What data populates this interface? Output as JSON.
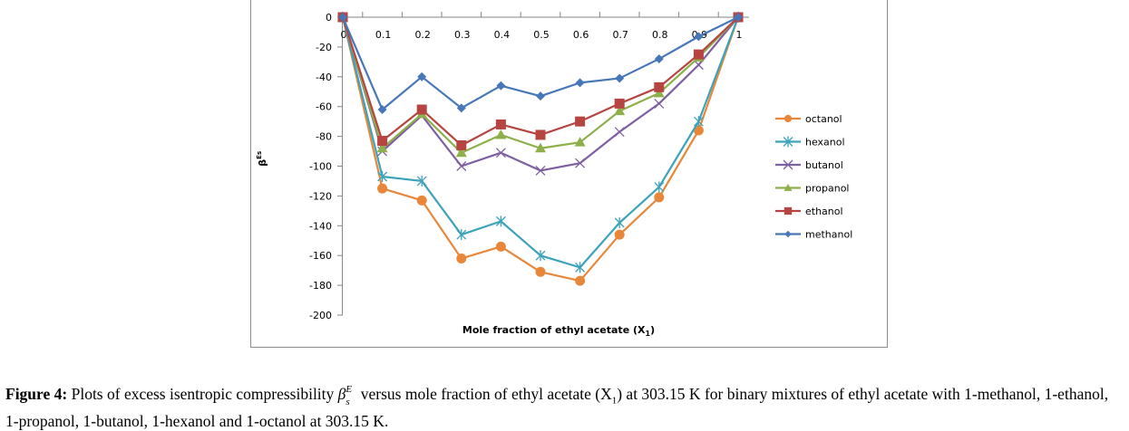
{
  "chart_data": {
    "type": "line",
    "title": "",
    "xlabel": "Mole fraction of ethyl acetate (X",
    "xlabel_sub": "1",
    "xlabel_close": ")",
    "ylabel": "β",
    "ylabel_sup": "E",
    "ylabel_sub": "s",
    "x": [
      0,
      0.1,
      0.2,
      0.3,
      0.4,
      0.5,
      0.6,
      0.7,
      0.8,
      0.9,
      1
    ],
    "x_tick_labels": [
      "0",
      "0.1",
      "0.2",
      "0.3",
      "0.4",
      "0.5",
      "0.6",
      "0.7",
      "0.8",
      "0.9",
      "1"
    ],
    "xlim": [
      0,
      1
    ],
    "ylim": [
      -200,
      0
    ],
    "y_ticks": [
      0,
      -20,
      -40,
      -60,
      -80,
      -100,
      -120,
      -140,
      -160,
      -180,
      -200
    ],
    "y_tick_labels": [
      "0",
      "-20",
      "-40",
      "-60",
      "-80",
      "-100",
      "-120",
      "-140",
      "-160",
      "-180",
      "-200"
    ],
    "grid": false,
    "legend_position": "right",
    "series": [
      {
        "name": "octanol",
        "color": "#E8873A",
        "marker": "circle",
        "values": [
          0,
          -115,
          -123,
          -162,
          -154,
          -171,
          -177,
          -146,
          -121,
          -76,
          0
        ]
      },
      {
        "name": "hexanol",
        "color": "#3CA3BA",
        "marker": "star",
        "values": [
          0,
          -107,
          -110,
          -146,
          -137,
          -160,
          -168,
          -138,
          -114,
          -70,
          0
        ]
      },
      {
        "name": "butanol",
        "color": "#7E5FA2",
        "marker": "x",
        "values": [
          0,
          -90,
          -66,
          -100,
          -91,
          -103,
          -98,
          -77,
          -58,
          -32,
          0
        ]
      },
      {
        "name": "propanol",
        "color": "#8DB04A",
        "marker": "triangle",
        "values": [
          0,
          -88,
          -65,
          -91,
          -79,
          -88,
          -84,
          -63,
          -51,
          -27,
          0
        ]
      },
      {
        "name": "ethanol",
        "color": "#B64440",
        "marker": "square",
        "values": [
          0,
          -83,
          -62,
          -86,
          -72,
          -79,
          -70,
          -58,
          -47,
          -25,
          0
        ]
      },
      {
        "name": "methanol",
        "color": "#4677B8",
        "marker": "diamond",
        "values": [
          0,
          -62,
          -40,
          -61,
          -46,
          -53,
          -44,
          -41,
          -28,
          -13,
          0
        ]
      }
    ]
  },
  "caption": {
    "label": "Figure 4:",
    "text_before_symbol": " Plots of excess isentropic compressibility ",
    "symbol": "β",
    "symbol_sup": "E",
    "symbol_sub": "s",
    "text_after_symbol": " versus mole fraction of ethyl acetate (X",
    "text_sub": "1",
    "text_end": ") at 303.15 K for binary mixtures of ethyl acetate with 1-methanol, 1-ethanol, 1-propanol, 1-butanol, 1-hexanol and 1-octanol at 303.15 K."
  }
}
